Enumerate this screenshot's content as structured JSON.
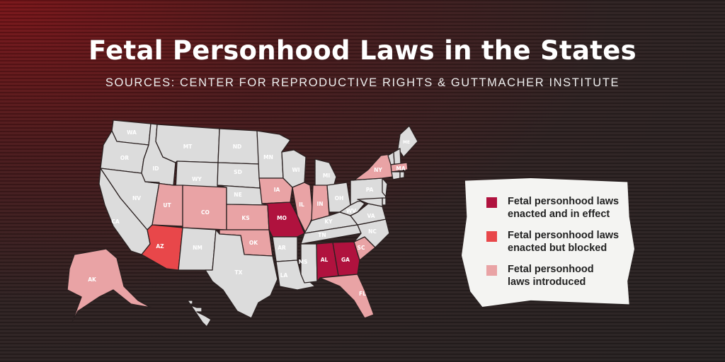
{
  "title": "Fetal Personhood Laws in the States",
  "subtitle": "SOURCES: CENTER FOR REPRODUCTIVE RIGHTS & GUTTMACHER INSTITUTE",
  "colors": {
    "in_effect": "#b0123e",
    "blocked": "#e8474a",
    "introduced": "#e9a3a5",
    "none": "#dcdcdc",
    "border": "#2a2020"
  },
  "legend": [
    {
      "key": "in_effect",
      "label": "Fetal personhood laws enacted and in effect"
    },
    {
      "key": "blocked",
      "label": "Fetal personhood laws enacted but blocked"
    },
    {
      "key": "introduced",
      "label": "Fetal personhood laws introduced"
    }
  ],
  "states": {
    "WA": "none",
    "OR": "none",
    "CA": "none",
    "NV": "none",
    "ID": "none",
    "MT": "none",
    "WY": "none",
    "UT": "introduced",
    "CO": "introduced",
    "AZ": "blocked",
    "NM": "none",
    "ND": "none",
    "SD": "none",
    "NE": "none",
    "KS": "introduced",
    "OK": "introduced",
    "TX": "none",
    "MN": "none",
    "IA": "introduced",
    "MO": "in_effect",
    "AR": "none",
    "LA": "none",
    "WI": "none",
    "IL": "introduced",
    "MI": "none",
    "IN": "introduced",
    "OH": "none",
    "KY": "none",
    "TN": "none",
    "MS": "none",
    "AL": "in_effect",
    "GA": "in_effect",
    "FL": "introduced",
    "SC": "introduced",
    "NC": "none",
    "VA": "none",
    "WV": "none",
    "PA": "none",
    "NY": "introduced",
    "ME": "none",
    "VT": "none",
    "NH": "none",
    "MA": "introduced",
    "CT": "none",
    "RI": "none",
    "NJ": "none",
    "DE": "none",
    "MD": "none",
    "AK": "introduced",
    "HI": "none"
  }
}
